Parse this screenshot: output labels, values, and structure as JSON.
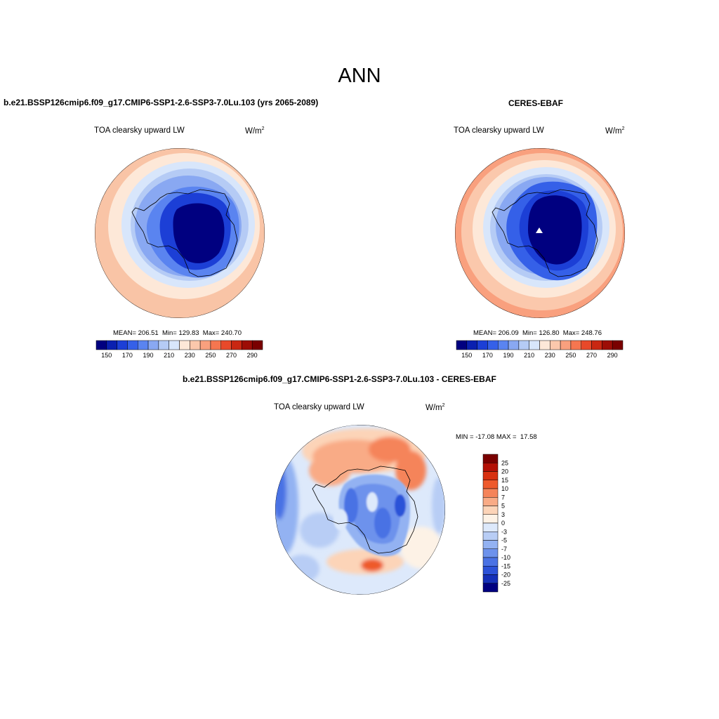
{
  "main_title": "ANN",
  "panels": [
    {
      "title": "b.e21.BSSP126cmip6.f09_g17.CMIP6-SSP1-2.6-SSP3-7.0Lu.103 (yrs 2065-2089)",
      "variable": "TOA clearsky upward LW",
      "units": "W/m",
      "units_sup": "2",
      "stats": "MEAN= 206.51  Min= 129.83  Max= 240.70"
    },
    {
      "title": "CERES-EBAF",
      "variable": "TOA clearsky upward LW",
      "units": "W/m",
      "units_sup": "2",
      "stats": "MEAN= 206.09  Min= 126.80  Max= 248.76"
    },
    {
      "title": "b.e21.BSSP126cmip6.f09_g17.CMIP6-SSP1-2.6-SSP3-7.0Lu.103 - CERES-EBAF",
      "variable": "TOA clearsky upward LW",
      "units": "W/m",
      "units_sup": "2",
      "stats": "MIN = -17.08 MAX =  17.58"
    }
  ],
  "colorbar_abs": {
    "colors": [
      "#000080",
      "#0a20b0",
      "#1c3fd6",
      "#3560e8",
      "#5a84f0",
      "#89a8f2",
      "#b5cbf5",
      "#d8e6fb",
      "#fde8d8",
      "#fbc8ac",
      "#f9a07e",
      "#f57650",
      "#e8492a",
      "#c92712",
      "#9d0d06",
      "#7a0000"
    ],
    "tick_labels": [
      "150",
      "170",
      "190",
      "210",
      "230",
      "250",
      "270",
      "290"
    ]
  },
  "colorbar_diff": {
    "colors": [
      "#7a0000",
      "#b31006",
      "#d8300f",
      "#ee5a2c",
      "#f5845a",
      "#f9ab86",
      "#fcd4b8",
      "#fdf2e6",
      "#dde9fb",
      "#b8cdf5",
      "#93b2f2",
      "#6d92ec",
      "#4a72e4",
      "#2c52d8",
      "#1530b8",
      "#000080"
    ],
    "tick_labels": [
      "25",
      "20",
      "15",
      "10",
      "7",
      "5",
      "3",
      "0",
      "-3",
      "-5",
      "-7",
      "-10",
      "-15",
      "-20",
      "-25"
    ]
  }
}
